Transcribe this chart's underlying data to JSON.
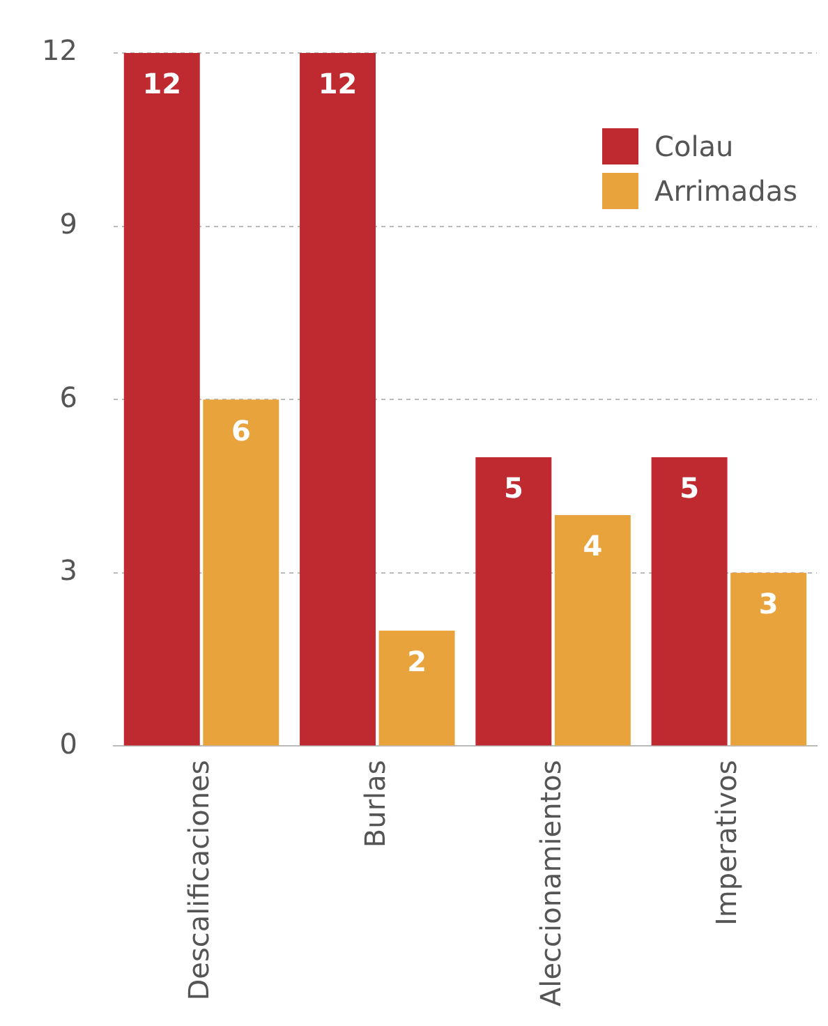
{
  "chart_data": {
    "type": "bar",
    "categories": [
      "Descalificaciones",
      "Burlas",
      "Aleccionamientos",
      "Imperativos"
    ],
    "series": [
      {
        "name": "Colau",
        "color": "#be2a30",
        "values": [
          12,
          12,
          5,
          5
        ]
      },
      {
        "name": "Arrimadas",
        "color": "#e9a33c",
        "values": [
          6,
          2,
          4,
          3
        ]
      }
    ],
    "ylim": [
      0,
      12
    ],
    "yticks": [
      0,
      3,
      6,
      9,
      12
    ],
    "grid": "y",
    "legend": "top right",
    "data_labels": true
  }
}
